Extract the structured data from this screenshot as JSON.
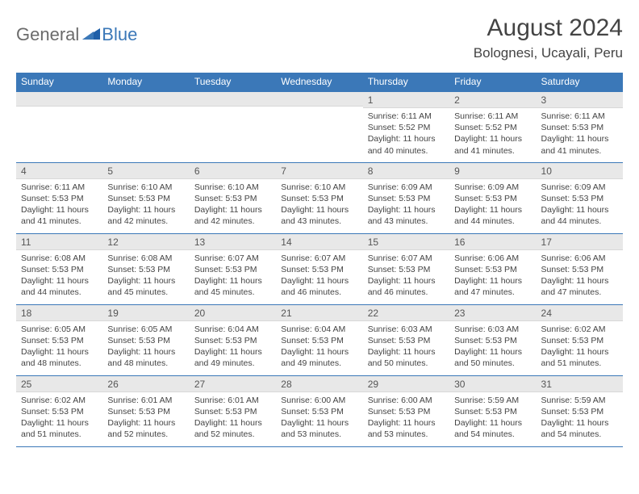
{
  "logo": {
    "part1": "General",
    "part2": "Blue"
  },
  "title": "August 2024",
  "location": "Bolognesi, Ucayali, Peru",
  "colors": {
    "header_bg": "#3b78b8",
    "header_text": "#ffffff",
    "daynum_bg": "#e8e8e8",
    "border": "#3b78b8",
    "text": "#444444",
    "logo_gray": "#6b6b6b",
    "logo_blue": "#3b78b8"
  },
  "weekdays": [
    "Sunday",
    "Monday",
    "Tuesday",
    "Wednesday",
    "Thursday",
    "Friday",
    "Saturday"
  ],
  "weeks": [
    [
      null,
      null,
      null,
      null,
      {
        "d": "1",
        "sr": "6:11 AM",
        "ss": "5:52 PM",
        "dl": "11 hours and 40 minutes."
      },
      {
        "d": "2",
        "sr": "6:11 AM",
        "ss": "5:52 PM",
        "dl": "11 hours and 41 minutes."
      },
      {
        "d": "3",
        "sr": "6:11 AM",
        "ss": "5:53 PM",
        "dl": "11 hours and 41 minutes."
      }
    ],
    [
      {
        "d": "4",
        "sr": "6:11 AM",
        "ss": "5:53 PM",
        "dl": "11 hours and 41 minutes."
      },
      {
        "d": "5",
        "sr": "6:10 AM",
        "ss": "5:53 PM",
        "dl": "11 hours and 42 minutes."
      },
      {
        "d": "6",
        "sr": "6:10 AM",
        "ss": "5:53 PM",
        "dl": "11 hours and 42 minutes."
      },
      {
        "d": "7",
        "sr": "6:10 AM",
        "ss": "5:53 PM",
        "dl": "11 hours and 43 minutes."
      },
      {
        "d": "8",
        "sr": "6:09 AM",
        "ss": "5:53 PM",
        "dl": "11 hours and 43 minutes."
      },
      {
        "d": "9",
        "sr": "6:09 AM",
        "ss": "5:53 PM",
        "dl": "11 hours and 44 minutes."
      },
      {
        "d": "10",
        "sr": "6:09 AM",
        "ss": "5:53 PM",
        "dl": "11 hours and 44 minutes."
      }
    ],
    [
      {
        "d": "11",
        "sr": "6:08 AM",
        "ss": "5:53 PM",
        "dl": "11 hours and 44 minutes."
      },
      {
        "d": "12",
        "sr": "6:08 AM",
        "ss": "5:53 PM",
        "dl": "11 hours and 45 minutes."
      },
      {
        "d": "13",
        "sr": "6:07 AM",
        "ss": "5:53 PM",
        "dl": "11 hours and 45 minutes."
      },
      {
        "d": "14",
        "sr": "6:07 AM",
        "ss": "5:53 PM",
        "dl": "11 hours and 46 minutes."
      },
      {
        "d": "15",
        "sr": "6:07 AM",
        "ss": "5:53 PM",
        "dl": "11 hours and 46 minutes."
      },
      {
        "d": "16",
        "sr": "6:06 AM",
        "ss": "5:53 PM",
        "dl": "11 hours and 47 minutes."
      },
      {
        "d": "17",
        "sr": "6:06 AM",
        "ss": "5:53 PM",
        "dl": "11 hours and 47 minutes."
      }
    ],
    [
      {
        "d": "18",
        "sr": "6:05 AM",
        "ss": "5:53 PM",
        "dl": "11 hours and 48 minutes."
      },
      {
        "d": "19",
        "sr": "6:05 AM",
        "ss": "5:53 PM",
        "dl": "11 hours and 48 minutes."
      },
      {
        "d": "20",
        "sr": "6:04 AM",
        "ss": "5:53 PM",
        "dl": "11 hours and 49 minutes."
      },
      {
        "d": "21",
        "sr": "6:04 AM",
        "ss": "5:53 PM",
        "dl": "11 hours and 49 minutes."
      },
      {
        "d": "22",
        "sr": "6:03 AM",
        "ss": "5:53 PM",
        "dl": "11 hours and 50 minutes."
      },
      {
        "d": "23",
        "sr": "6:03 AM",
        "ss": "5:53 PM",
        "dl": "11 hours and 50 minutes."
      },
      {
        "d": "24",
        "sr": "6:02 AM",
        "ss": "5:53 PM",
        "dl": "11 hours and 51 minutes."
      }
    ],
    [
      {
        "d": "25",
        "sr": "6:02 AM",
        "ss": "5:53 PM",
        "dl": "11 hours and 51 minutes."
      },
      {
        "d": "26",
        "sr": "6:01 AM",
        "ss": "5:53 PM",
        "dl": "11 hours and 52 minutes."
      },
      {
        "d": "27",
        "sr": "6:01 AM",
        "ss": "5:53 PM",
        "dl": "11 hours and 52 minutes."
      },
      {
        "d": "28",
        "sr": "6:00 AM",
        "ss": "5:53 PM",
        "dl": "11 hours and 53 minutes."
      },
      {
        "d": "29",
        "sr": "6:00 AM",
        "ss": "5:53 PM",
        "dl": "11 hours and 53 minutes."
      },
      {
        "d": "30",
        "sr": "5:59 AM",
        "ss": "5:53 PM",
        "dl": "11 hours and 54 minutes."
      },
      {
        "d": "31",
        "sr": "5:59 AM",
        "ss": "5:53 PM",
        "dl": "11 hours and 54 minutes."
      }
    ]
  ],
  "labels": {
    "sunrise": "Sunrise: ",
    "sunset": "Sunset: ",
    "daylight": "Daylight: "
  }
}
